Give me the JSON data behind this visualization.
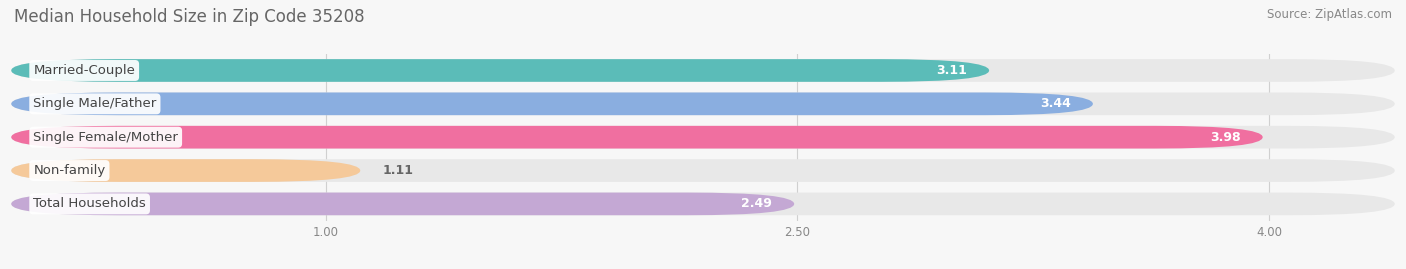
{
  "title": "Median Household Size in Zip Code 35208",
  "source": "Source: ZipAtlas.com",
  "categories": [
    "Married-Couple",
    "Single Male/Father",
    "Single Female/Mother",
    "Non-family",
    "Total Households"
  ],
  "values": [
    3.11,
    3.44,
    3.98,
    1.11,
    2.49
  ],
  "bar_colors": [
    "#5bbcb8",
    "#8aaee0",
    "#f06fa0",
    "#f5c99a",
    "#c4a8d4"
  ],
  "xlim_left": 0.0,
  "xlim_right": 4.4,
  "xticks": [
    1.0,
    2.5,
    4.0
  ],
  "xtick_labels": [
    "1.00",
    "2.50",
    "4.00"
  ],
  "title_fontsize": 12,
  "source_fontsize": 8.5,
  "bar_height": 0.68,
  "bar_gap": 0.18,
  "label_fontsize": 9.5,
  "value_fontsize": 9,
  "background_color": "#f7f7f7",
  "bar_bg_color": "#e8e8e8",
  "label_box_color": "white",
  "label_text_color": "#444444",
  "value_color_inside": "white",
  "value_color_outside": "#666666",
  "grid_color": "#d0d0d0",
  "tick_color": "#888888"
}
